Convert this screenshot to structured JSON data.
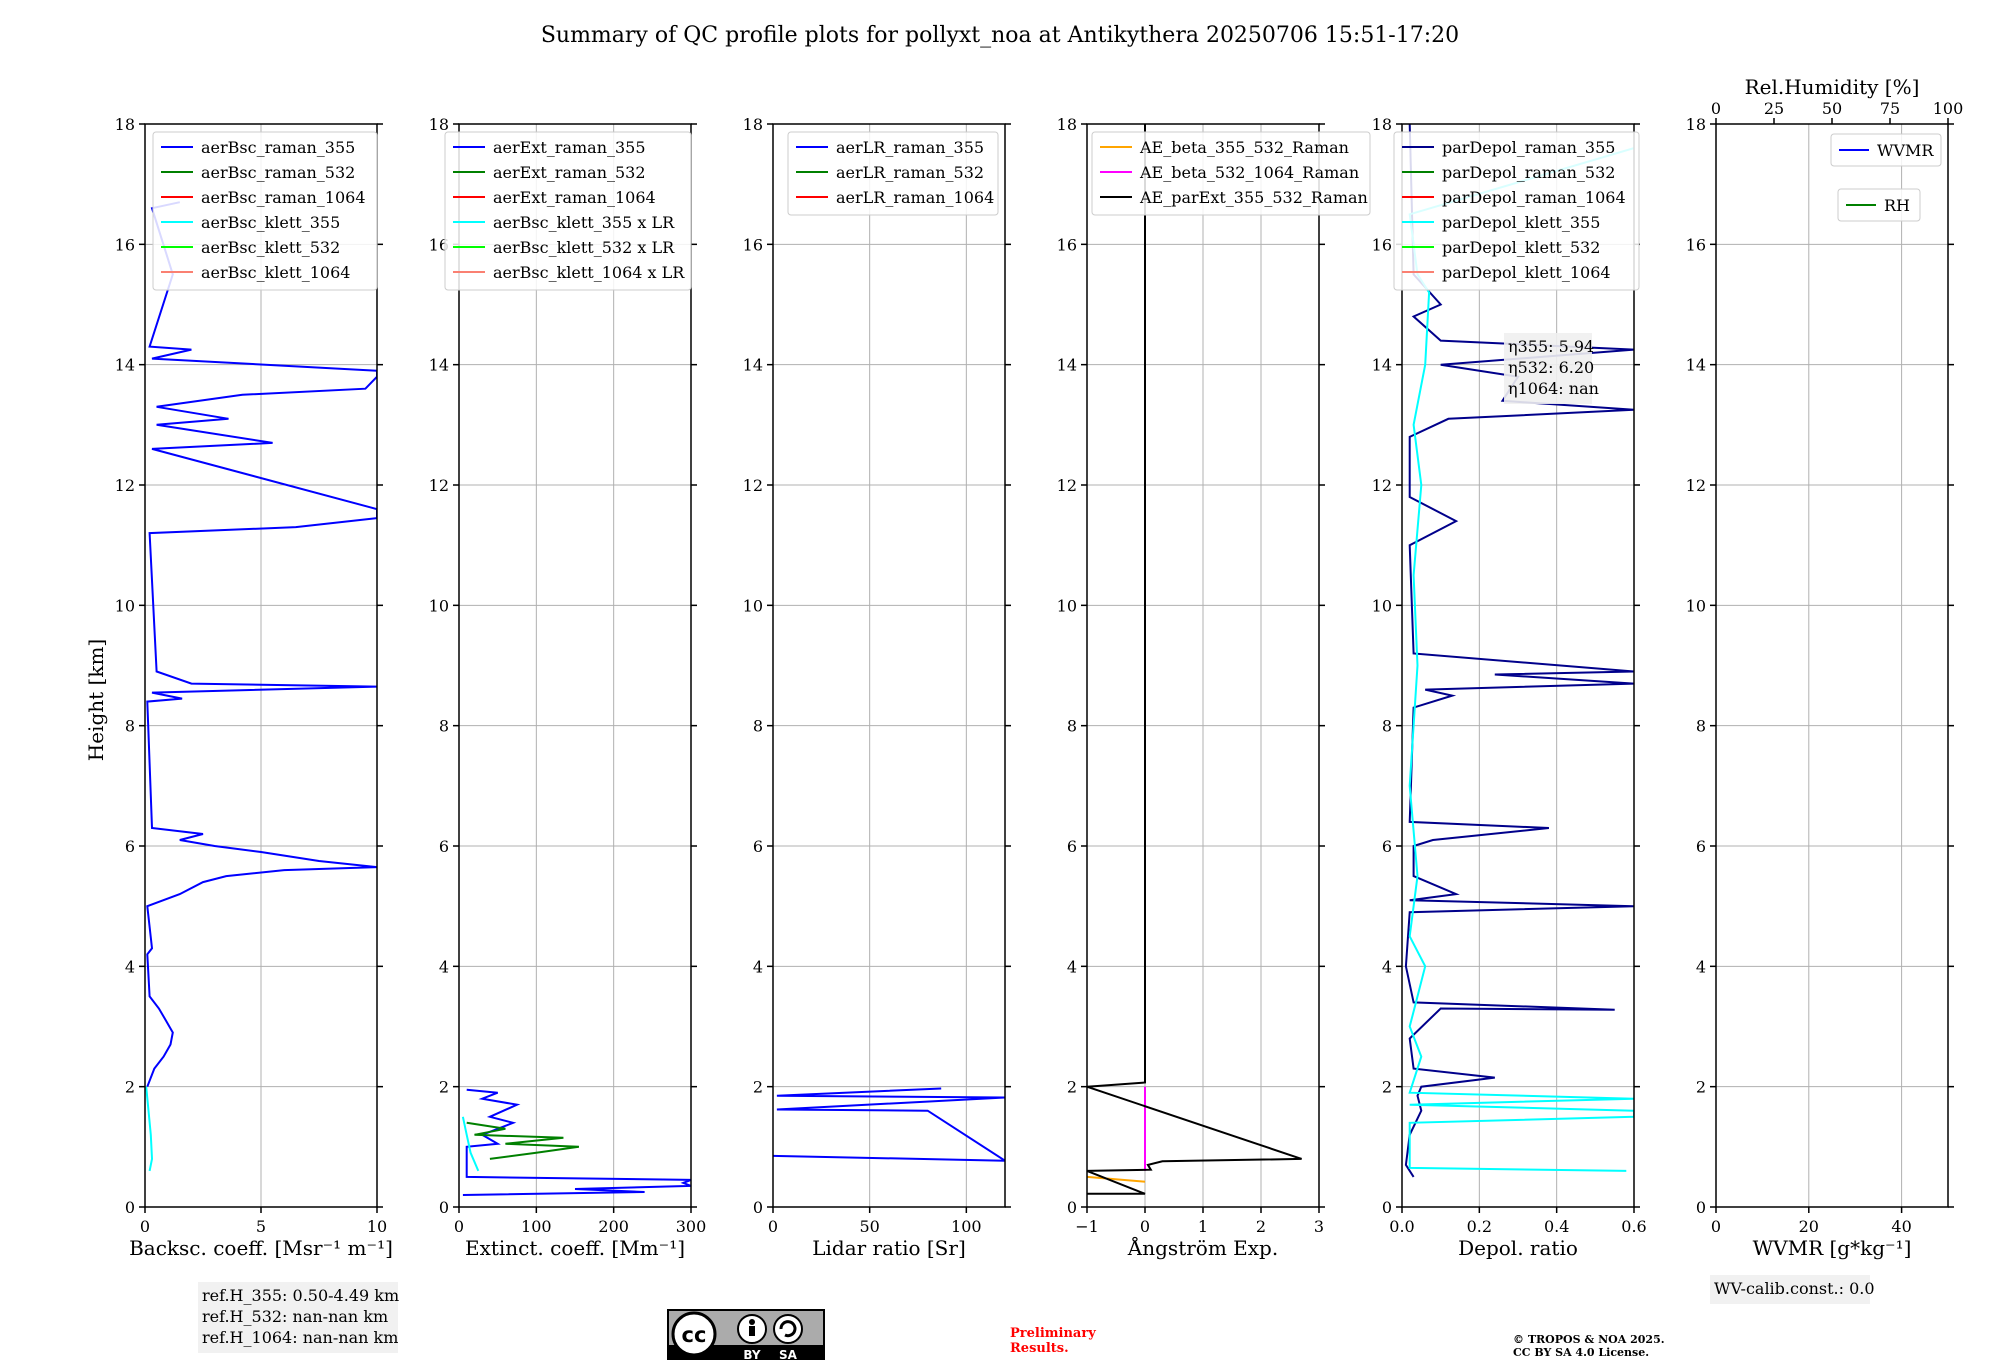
{
  "title": "Summary of QC profile plots for pollyxt_noa at Antikythera 20250706 15:51-17:20",
  "colors": {
    "blue": "#0000ff",
    "darkblue": "#00008b",
    "green": "#008000",
    "red": "#ff0000",
    "cyan": "#00ffff",
    "lime": "#00ff00",
    "salmon": "#fa8072",
    "orange": "#ffa500",
    "magenta": "#ff00ff",
    "black": "#000000",
    "grid": "#b0b0b0"
  },
  "chart_data": [
    {
      "type": "line",
      "xlabel": "Backsc. coeff. [Msr⁻¹ m⁻¹]",
      "ylabel": "Height [km]",
      "xlim": [
        0,
        10
      ],
      "ylim": [
        0,
        18
      ],
      "xticks": [
        "0",
        "5",
        "10"
      ],
      "yticks": [
        "0",
        "2",
        "4",
        "6",
        "8",
        "10",
        "12",
        "14",
        "16",
        "18"
      ],
      "legend": "top-left",
      "series": [
        {
          "name": "aerBsc_raman_355",
          "color": "#0000ff",
          "points": [
            [
              0.1,
              2.0
            ],
            [
              0.4,
              2.3
            ],
            [
              0.8,
              2.5
            ],
            [
              1.1,
              2.7
            ],
            [
              1.2,
              2.9
            ],
            [
              0.9,
              3.1
            ],
            [
              0.6,
              3.3
            ],
            [
              0.2,
              3.5
            ],
            [
              0.1,
              4.2
            ],
            [
              0.3,
              4.3
            ],
            [
              0.1,
              5.0
            ],
            [
              1.5,
              5.2
            ],
            [
              2.5,
              5.4
            ],
            [
              3.5,
              5.5
            ],
            [
              6,
              5.6
            ],
            [
              10,
              5.65
            ],
            [
              7.5,
              5.75
            ],
            [
              5,
              5.9
            ],
            [
              3,
              6.0
            ],
            [
              1.5,
              6.1
            ],
            [
              2.5,
              6.2
            ],
            [
              0.3,
              6.3
            ],
            [
              0.1,
              8.4
            ],
            [
              1.6,
              8.45
            ],
            [
              0.3,
              8.55
            ],
            [
              10,
              8.65
            ],
            [
              2,
              8.7
            ],
            [
              0.5,
              8.9
            ],
            [
              0.2,
              11.2
            ],
            [
              6.5,
              11.3
            ],
            [
              10,
              11.45
            ],
            [
              10,
              11.6
            ],
            [
              0.3,
              12.6
            ],
            [
              5.5,
              12.7
            ],
            [
              0.5,
              13.0
            ],
            [
              3.6,
              13.1
            ],
            [
              0.5,
              13.3
            ],
            [
              4.2,
              13.5
            ],
            [
              9.5,
              13.6
            ],
            [
              10,
              13.8
            ],
            [
              10,
              13.9
            ],
            [
              0.3,
              14.1
            ],
            [
              2,
              14.25
            ],
            [
              0.2,
              14.3
            ],
            [
              1.2,
              15.5
            ],
            [
              0.3,
              16.6
            ],
            [
              1.5,
              16.7
            ]
          ]
        },
        {
          "name": "aerBsc_raman_532",
          "color": "#008000",
          "points": []
        },
        {
          "name": "aerBsc_raman_1064",
          "color": "#ff0000",
          "points": []
        },
        {
          "name": "aerBsc_klett_355",
          "color": "#00ffff",
          "points": [
            [
              0.2,
              0.6
            ],
            [
              0.3,
              0.8
            ],
            [
              0.25,
              1.2
            ],
            [
              0.15,
              1.6
            ],
            [
              0.05,
              2.0
            ]
          ]
        },
        {
          "name": "aerBsc_klett_532",
          "color": "#00ff00",
          "points": []
        },
        {
          "name": "aerBsc_klett_1064",
          "color": "#fa8072",
          "points": []
        }
      ],
      "annotation": [
        "ref.H_355: 0.50-4.49 km",
        "ref.H_532: nan-nan km",
        "ref.H_1064: nan-nan km"
      ]
    },
    {
      "type": "line",
      "xlabel": "Extinct. coeff. [Mm⁻¹]",
      "xlim": [
        0,
        300
      ],
      "ylim": [
        0,
        18
      ],
      "xticks": [
        "0",
        "100",
        "200",
        "300"
      ],
      "yticks": [
        "0",
        "2",
        "4",
        "6",
        "8",
        "10",
        "12",
        "14",
        "16",
        "18"
      ],
      "legend": "top-left",
      "series": [
        {
          "name": "aerExt_raman_355",
          "color": "#0000ff",
          "points": [
            [
              5,
              0.2
            ],
            [
              240,
              0.25
            ],
            [
              150,
              0.3
            ],
            [
              300,
              0.35
            ],
            [
              290,
              0.4
            ],
            [
              300,
              0.45
            ],
            [
              10,
              0.5
            ],
            [
              10,
              1.0
            ],
            [
              50,
              1.05
            ],
            [
              30,
              1.2
            ],
            [
              70,
              1.4
            ],
            [
              40,
              1.5
            ],
            [
              75,
              1.7
            ],
            [
              30,
              1.8
            ],
            [
              50,
              1.9
            ],
            [
              10,
              1.95
            ]
          ]
        },
        {
          "name": "aerExt_raman_532",
          "color": "#008000",
          "points": [
            [
              40,
              0.8
            ],
            [
              100,
              0.9
            ],
            [
              155,
              1.0
            ],
            [
              60,
              1.05
            ],
            [
              135,
              1.15
            ],
            [
              20,
              1.2
            ],
            [
              60,
              1.3
            ],
            [
              10,
              1.4
            ]
          ]
        },
        {
          "name": "aerExt_raman_1064",
          "color": "#ff0000",
          "points": []
        },
        {
          "name": "aerBsc_klett_355 x LR",
          "color": "#00ffff",
          "points": [
            [
              25,
              0.6
            ],
            [
              15,
              0.9
            ],
            [
              10,
              1.2
            ],
            [
              5,
              1.5
            ]
          ]
        },
        {
          "name": "aerBsc_klett_532 x LR",
          "color": "#00ff00",
          "points": []
        },
        {
          "name": "aerBsc_klett_1064 x LR",
          "color": "#fa8072",
          "points": []
        }
      ]
    },
    {
      "type": "line",
      "xlabel": "Lidar ratio [Sr]",
      "xlim": [
        0,
        120
      ],
      "ylim": [
        0,
        18
      ],
      "xticks": [
        "0",
        "50",
        "100"
      ],
      "yticks": [
        "0",
        "2",
        "4",
        "6",
        "8",
        "10",
        "12",
        "14",
        "16",
        "18"
      ],
      "legend": "top-left",
      "series": [
        {
          "name": "aerLR_raman_355",
          "color": "#0000ff",
          "points": [
            [
              0,
              0.85
            ],
            [
              120,
              0.77
            ],
            [
              80,
              1.6
            ],
            [
              2,
              1.62
            ],
            [
              120,
              1.82
            ],
            [
              2,
              1.85
            ],
            [
              87,
              1.97
            ]
          ]
        },
        {
          "name": "aerLR_raman_532",
          "color": "#008000",
          "points": []
        },
        {
          "name": "aerLR_raman_1064",
          "color": "#ff0000",
          "points": []
        }
      ]
    },
    {
      "type": "line",
      "xlabel": "Ångström Exp.",
      "xlim": [
        -1,
        3
      ],
      "ylim": [
        0,
        18
      ],
      "xticks": [
        "−1",
        "0",
        "1",
        "2",
        "3"
      ],
      "yticks": [
        "0",
        "2",
        "4",
        "6",
        "8",
        "10",
        "12",
        "14",
        "16",
        "18"
      ],
      "legend": "top-left",
      "series": [
        {
          "name": "AE_beta_355_532_Raman",
          "color": "#ffa500",
          "points": [
            [
              -1,
              0.5
            ],
            [
              0,
              0.42
            ]
          ]
        },
        {
          "name": "AE_beta_532_1064_Raman",
          "color": "#ff00ff",
          "points": [
            [
              0,
              0.6
            ],
            [
              0,
              2.0
            ]
          ]
        },
        {
          "name": "AE_parExt_355_532_Raman",
          "color": "#000000",
          "points": [
            [
              -1,
              0.22
            ],
            [
              0,
              0.22
            ],
            [
              -1,
              0.6
            ],
            [
              0.1,
              0.62
            ],
            [
              0.05,
              0.7
            ],
            [
              0.3,
              0.76
            ],
            [
              2.7,
              0.8
            ],
            [
              -1,
              2.0
            ],
            [
              0,
              2.07
            ],
            [
              0,
              18
            ]
          ]
        }
      ]
    },
    {
      "type": "line",
      "xlabel": "Depol. ratio",
      "xlim": [
        0,
        0.6
      ],
      "ylim": [
        0,
        18
      ],
      "xticks": [
        "0.0",
        "0.2",
        "0.4",
        "0.6"
      ],
      "yticks": [
        "0",
        "2",
        "4",
        "6",
        "8",
        "10",
        "12",
        "14",
        "16",
        "18"
      ],
      "legend": "top-left",
      "series": [
        {
          "name": "parDepol_raman_355",
          "color": "#00008b",
          "points": [
            [
              0.03,
              0.5
            ],
            [
              0.01,
              0.7
            ],
            [
              0.02,
              1.2
            ],
            [
              0.05,
              1.6
            ],
            [
              0.04,
              1.85
            ],
            [
              0.05,
              2.0
            ],
            [
              0.24,
              2.15
            ],
            [
              0.03,
              2.3
            ],
            [
              0.02,
              2.8
            ],
            [
              0.1,
              3.3
            ],
            [
              0.55,
              3.28
            ],
            [
              0.03,
              3.4
            ],
            [
              0.01,
              4.0
            ],
            [
              0.02,
              4.9
            ],
            [
              0.6,
              5.0
            ],
            [
              0.02,
              5.1
            ],
            [
              0.14,
              5.2
            ],
            [
              0.03,
              5.5
            ],
            [
              0.03,
              6.0
            ],
            [
              0.08,
              6.1
            ],
            [
              0.38,
              6.3
            ],
            [
              0.02,
              6.4
            ],
            [
              0.03,
              8.3
            ],
            [
              0.13,
              8.5
            ],
            [
              0.06,
              8.6
            ],
            [
              0.6,
              8.7
            ],
            [
              0.24,
              8.85
            ],
            [
              0.6,
              8.9
            ],
            [
              0.03,
              9.2
            ],
            [
              0.02,
              11.0
            ],
            [
              0.14,
              11.4
            ],
            [
              0.02,
              11.8
            ],
            [
              0.02,
              12.8
            ],
            [
              0.12,
              13.1
            ],
            [
              0.6,
              13.25
            ],
            [
              0.26,
              13.4
            ],
            [
              0.3,
              13.8
            ],
            [
              0.1,
              14.0
            ],
            [
              0.6,
              14.25
            ],
            [
              0.1,
              14.4
            ],
            [
              0.03,
              14.8
            ],
            [
              0.1,
              15.0
            ],
            [
              0.03,
              15.5
            ],
            [
              0.02,
              18
            ]
          ]
        },
        {
          "name": "parDepol_raman_532",
          "color": "#008000",
          "points": []
        },
        {
          "name": "parDepol_raman_1064",
          "color": "#ff0000",
          "points": []
        },
        {
          "name": "parDepol_klett_355",
          "color": "#00ffff",
          "points": [
            [
              0.58,
              0.6
            ],
            [
              0.02,
              0.65
            ],
            [
              0.02,
              1.4
            ],
            [
              0.6,
              1.5
            ],
            [
              0.6,
              1.6
            ],
            [
              0.02,
              1.7
            ],
            [
              0.6,
              1.8
            ],
            [
              0.02,
              1.9
            ],
            [
              0.05,
              2.5
            ],
            [
              0.02,
              3.0
            ],
            [
              0.04,
              3.5
            ],
            [
              0.06,
              4.0
            ],
            [
              0.02,
              4.5
            ],
            [
              0.04,
              5.5
            ],
            [
              0.02,
              7.0
            ],
            [
              0.04,
              9.0
            ],
            [
              0.03,
              10.5
            ],
            [
              0.05,
              12.0
            ],
            [
              0.03,
              13.0
            ],
            [
              0.06,
              14.0
            ],
            [
              0.07,
              15.2
            ],
            [
              0.04,
              15.5
            ],
            [
              0.02,
              16.5
            ],
            [
              0.6,
              17.6
            ]
          ]
        },
        {
          "name": "parDepol_klett_532",
          "color": "#00ff00",
          "points": []
        },
        {
          "name": "parDepol_klett_1064",
          "color": "#fa8072",
          "points": []
        }
      ],
      "annotation": [
        "η355: 5.94",
        "η532: 6.20",
        "η1064: nan"
      ]
    },
    {
      "type": "line",
      "xlabel": "WVMR [g*kg⁻¹]",
      "xlim": [
        0,
        50
      ],
      "ylim": [
        0,
        18
      ],
      "xticks": [
        "0",
        "20",
        "40"
      ],
      "yticks": [
        "0",
        "2",
        "4",
        "6",
        "8",
        "10",
        "12",
        "14",
        "16",
        "18"
      ],
      "x2label": "Rel.Humidity [%]",
      "x2lim": [
        0,
        100
      ],
      "x2ticks": [
        "0",
        "25",
        "50",
        "75",
        "100"
      ],
      "legend": "top-right",
      "series": [
        {
          "name": "WVMR",
          "color": "#0000ff",
          "points": []
        },
        {
          "name": "RH",
          "color": "#008000",
          "points": []
        }
      ],
      "annotation": [
        "WV-calib.const.: 0.0"
      ]
    }
  ],
  "footer": {
    "cc_label": "cc",
    "cc_by": "BY",
    "cc_sa": "SA",
    "preliminary": [
      "Preliminary",
      "Results."
    ],
    "copyright": [
      "© TROPOS & NOA 2025.",
      "CC BY SA 4.0 License."
    ]
  }
}
